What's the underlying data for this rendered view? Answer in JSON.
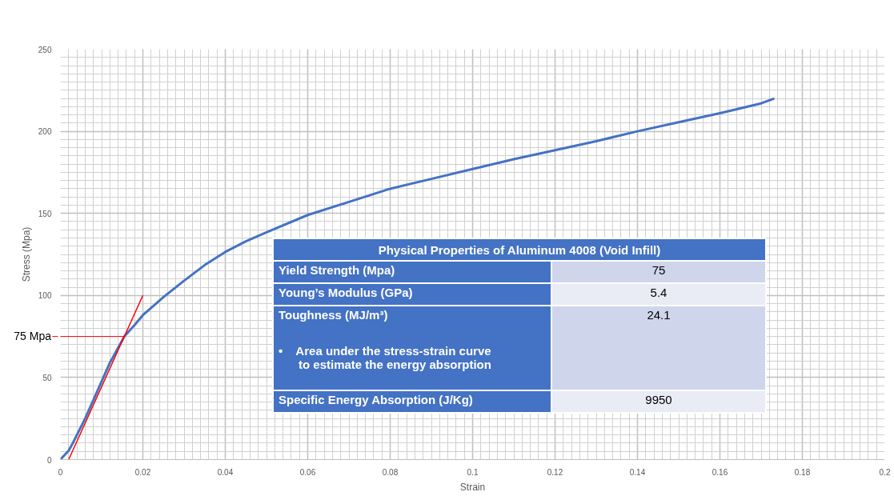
{
  "chart_data": {
    "type": "line",
    "xlabel": "Strain",
    "ylabel": "Stress (Mpa)",
    "xlim": [
      0,
      0.2
    ],
    "ylim": [
      0,
      250
    ],
    "xticks": [
      0,
      0.02,
      0.04,
      0.06,
      0.08,
      0.1,
      0.12,
      0.14,
      0.16,
      0.18,
      0.2
    ],
    "yticks": [
      0,
      50,
      100,
      150,
      200,
      250
    ],
    "grid": true,
    "series": [
      {
        "color": "#4472c4",
        "x": [
          0,
          0.002,
          0.003,
          0.006,
          0.009,
          0.012,
          0.0155,
          0.018,
          0.02,
          0.025,
          0.03,
          0.035,
          0.04,
          0.045,
          0.05,
          0.06,
          0.07,
          0.08,
          0.09,
          0.1,
          0.11,
          0.12,
          0.13,
          0.14,
          0.15,
          0.16,
          0.17,
          0.1732
        ],
        "values": [
          0,
          5.5,
          10,
          25,
          42,
          59,
          75,
          82,
          88,
          99,
          109,
          118.5,
          126.5,
          133,
          138.5,
          149,
          157,
          165,
          171,
          177,
          183,
          188.5,
          194,
          200,
          205.5,
          211,
          217,
          220
        ]
      },
      {
        "color": "#ff0000",
        "x": [
          0.002,
          0.02
        ],
        "values": [
          0,
          100
        ]
      }
    ],
    "annotations": [
      "Physical Properties of Aluminum 4008 (Void Infill)",
      "Yield Strength (Mpa)",
      "75",
      "Young’s Modulus (GPa)",
      "5.4",
      "Toughness (MJ/m³)",
      "24.1",
      "•    Area under the stress-strain curve\n      to estimate the energy absorption",
      "Specific Energy Absorption (J/Kg)",
      "9950",
      {
        "text": "75 Mpa",
        "x": 0.0155,
        "y": 75
      }
    ]
  }
}
